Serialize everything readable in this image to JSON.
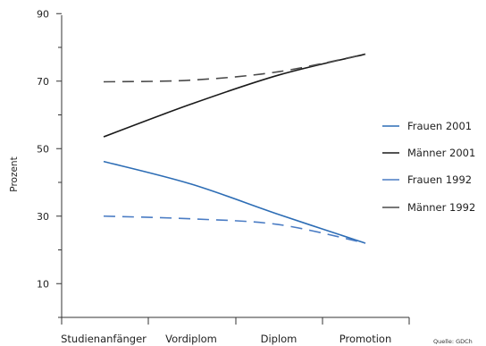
{
  "chart_data": {
    "type": "line",
    "categories": [
      "Studienanfänger",
      "Vordiplom",
      "Diplom",
      "Promotion"
    ],
    "ylabel": "Prozent",
    "yticks": [
      10,
      30,
      50,
      70,
      90
    ],
    "ylim": [
      0,
      90
    ],
    "legend_position": "right",
    "source": "Quelle: GDCh",
    "series": [
      {
        "name": "Frauen  2001",
        "values": [
          46.2,
          39.5,
          30.5,
          22.0
        ],
        "color": "#2d6db5",
        "dashed": false
      },
      {
        "name": "Männer  2001",
        "values": [
          53.5,
          63.2,
          71.8,
          78.0
        ],
        "color": "#1a1a1a",
        "dashed": false
      },
      {
        "name": "Frauen  1992",
        "values": [
          30.0,
          29.2,
          27.5,
          22.0
        ],
        "color": "#4a7cc4",
        "dashed": true
      },
      {
        "name": "Männer  1992",
        "values": [
          69.8,
          70.3,
          72.8,
          78.0
        ],
        "color": "#4a4a4a",
        "dashed": true
      }
    ]
  }
}
